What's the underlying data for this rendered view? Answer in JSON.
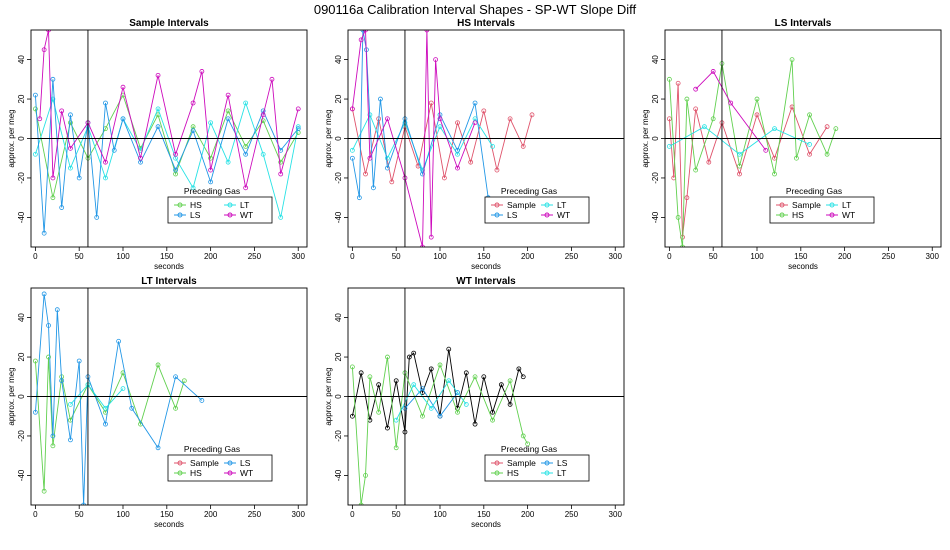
{
  "figure": {
    "title": "090116a   Calibration Interval Shapes - SP-WT Slope Diff"
  },
  "colors": {
    "Sample": "#df536b",
    "HS": "#61d04f",
    "LS": "#2297e6",
    "LT": "#28e2e5",
    "WT": "#cd0bbc",
    "black": "#000000"
  },
  "chart_data": [
    {
      "type": "line",
      "title": "Sample Intervals",
      "xlabel": "seconds",
      "ylabel": "approx. per meg",
      "xlim": [
        -5,
        310
      ],
      "ylim": [
        -55,
        55
      ],
      "xticks": [
        0,
        50,
        100,
        150,
        200,
        250,
        300
      ],
      "yticks": [
        -40,
        -20,
        0,
        20,
        40
      ],
      "vline": 60,
      "hline": 0,
      "legend": {
        "title": "Preceding Gas",
        "position": "bottom-center",
        "columns": 2,
        "entries": [
          "HS",
          "LT",
          "LS",
          "WT"
        ]
      },
      "series": [
        {
          "name": "HS",
          "color": "HS",
          "x": [
            0,
            20,
            40,
            60,
            80,
            100,
            120,
            140,
            160,
            180,
            200,
            220,
            240,
            260,
            280,
            300
          ],
          "y": [
            15,
            -30,
            8,
            -10,
            5,
            22,
            -5,
            12,
            -18,
            6,
            -10,
            14,
            -4,
            9,
            -12,
            3
          ]
        },
        {
          "name": "LT",
          "color": "LT",
          "x": [
            0,
            20,
            40,
            60,
            80,
            100,
            120,
            140,
            160,
            180,
            200,
            220,
            240,
            260,
            280,
            300
          ],
          "y": [
            -8,
            20,
            -15,
            6,
            -20,
            10,
            -6,
            15,
            -10,
            -25,
            8,
            -12,
            18,
            -8,
            -40,
            6
          ]
        },
        {
          "name": "LS",
          "color": "LS",
          "x": [
            0,
            10,
            20,
            30,
            40,
            50,
            60,
            70,
            80,
            90,
            100,
            120,
            140,
            160,
            180,
            200,
            220,
            240,
            260,
            280,
            300
          ],
          "y": [
            22,
            -48,
            30,
            -35,
            12,
            -20,
            8,
            -40,
            18,
            -6,
            10,
            -12,
            6,
            -16,
            4,
            -22,
            10,
            -8,
            14,
            -6,
            5
          ]
        },
        {
          "name": "WT",
          "color": "WT",
          "x": [
            5,
            10,
            15,
            20,
            30,
            40,
            60,
            80,
            100,
            120,
            140,
            160,
            180,
            190,
            200,
            220,
            240,
            260,
            270,
            280,
            300
          ],
          "y": [
            10,
            45,
            55,
            -20,
            14,
            -5,
            8,
            -12,
            26,
            -10,
            32,
            -8,
            18,
            34,
            -16,
            22,
            -25,
            12,
            30,
            -18,
            15
          ]
        }
      ]
    },
    {
      "type": "line",
      "title": "HS Intervals",
      "xlabel": "seconds",
      "ylabel": "approx. per meg",
      "xlim": [
        -5,
        310
      ],
      "ylim": [
        -55,
        55
      ],
      "xticks": [
        0,
        50,
        100,
        150,
        200,
        250,
        300
      ],
      "yticks": [
        -40,
        -20,
        0,
        20,
        40
      ],
      "vline": 60,
      "hline": 0,
      "legend": {
        "title": "Preceding Gas",
        "position": "bottom-center",
        "columns": 2,
        "entries": [
          "Sample",
          "LT",
          "LS",
          "WT"
        ]
      },
      "series": [
        {
          "name": "Sample",
          "color": "Sample",
          "x": [
            0,
            15,
            30,
            45,
            60,
            75,
            90,
            105,
            120,
            135,
            150,
            165,
            180,
            195,
            205
          ],
          "y": [
            15,
            -18,
            10,
            -22,
            6,
            -14,
            18,
            -20,
            8,
            -12,
            14,
            -16,
            10,
            -4,
            12
          ]
        },
        {
          "name": "LT",
          "color": "LT",
          "x": [
            0,
            20,
            40,
            60,
            80,
            100,
            120,
            140,
            160
          ],
          "y": [
            -6,
            12,
            -10,
            8,
            -16,
            6,
            -8,
            10,
            -4
          ]
        },
        {
          "name": "LS",
          "color": "LS",
          "x": [
            0,
            8,
            12,
            16,
            24,
            32,
            40,
            60,
            80,
            100,
            120,
            140,
            155
          ],
          "y": [
            -10,
            -30,
            55,
            45,
            -25,
            20,
            -15,
            10,
            -18,
            12,
            -6,
            18,
            -30
          ]
        },
        {
          "name": "WT",
          "color": "WT",
          "x": [
            0,
            10,
            15,
            20,
            40,
            60,
            80,
            85,
            90,
            95,
            100,
            120,
            140
          ],
          "y": [
            15,
            50,
            55,
            -10,
            10,
            -20,
            -55,
            55,
            -50,
            40,
            10,
            -15,
            8
          ]
        }
      ]
    },
    {
      "type": "line",
      "title": "LS Intervals",
      "xlabel": "seconds",
      "ylabel": "approx. per meg",
      "xlim": [
        -5,
        310
      ],
      "ylim": [
        -55,
        55
      ],
      "xticks": [
        0,
        50,
        100,
        150,
        200,
        250,
        300
      ],
      "yticks": [
        -40,
        -20,
        0,
        20,
        40
      ],
      "vline": 60,
      "hline": 0,
      "legend": {
        "title": "Preceding Gas",
        "position": "bottom-center",
        "columns": 2,
        "entries": [
          "Sample",
          "LT",
          "HS",
          "WT"
        ]
      },
      "series": [
        {
          "name": "Sample",
          "color": "Sample",
          "x": [
            0,
            5,
            10,
            15,
            20,
            30,
            45,
            60,
            80,
            100,
            120,
            140,
            160,
            180
          ],
          "y": [
            10,
            -20,
            28,
            -50,
            -30,
            15,
            -12,
            8,
            -18,
            12,
            -10,
            16,
            -8,
            6
          ]
        },
        {
          "name": "HS",
          "color": "HS",
          "x": [
            0,
            10,
            15,
            20,
            30,
            50,
            60,
            80,
            100,
            120,
            140,
            145,
            160,
            180,
            190
          ],
          "y": [
            30,
            -40,
            -55,
            20,
            -16,
            10,
            38,
            -14,
            20,
            -18,
            40,
            -10,
            12,
            -8,
            5
          ]
        },
        {
          "name": "LT",
          "color": "LT",
          "x": [
            0,
            40,
            80,
            120,
            160
          ],
          "y": [
            -4,
            6,
            -8,
            5,
            -3
          ]
        },
        {
          "name": "WT",
          "color": "WT",
          "x": [
            30,
            50,
            70,
            110
          ],
          "y": [
            25,
            34,
            18,
            -6
          ]
        }
      ]
    },
    {
      "type": "line",
      "title": "LT Intervals",
      "xlabel": "seconds",
      "ylabel": "approx. per meg",
      "xlim": [
        -5,
        310
      ],
      "ylim": [
        -55,
        55
      ],
      "xticks": [
        0,
        50,
        100,
        150,
        200,
        250,
        300
      ],
      "yticks": [
        -40,
        -20,
        0,
        20,
        40
      ],
      "vline": 60,
      "hline": 0,
      "legend": {
        "title": "Preceding Gas",
        "position": "bottom-center",
        "columns": 2,
        "entries": [
          "Sample",
          "LS",
          "HS",
          "WT"
        ]
      },
      "series": [
        {
          "name": "HS",
          "color": "HS",
          "x": [
            0,
            10,
            15,
            20,
            30,
            40,
            60,
            80,
            100,
            120,
            140,
            160,
            170
          ],
          "y": [
            18,
            -48,
            20,
            -25,
            10,
            -12,
            6,
            -8,
            12,
            -14,
            16,
            -6,
            8
          ]
        },
        {
          "name": "LS",
          "color": "LS",
          "x": [
            0,
            10,
            15,
            20,
            25,
            30,
            40,
            50,
            55,
            60,
            80,
            95,
            110,
            140,
            160,
            190
          ],
          "y": [
            -8,
            52,
            36,
            -20,
            44,
            8,
            -22,
            18,
            -55,
            10,
            -14,
            28,
            -6,
            -26,
            10,
            -2
          ]
        },
        {
          "name": "LT",
          "color": "LT",
          "x": [
            40,
            60,
            80,
            100
          ],
          "y": [
            -4,
            6,
            -6,
            4
          ]
        }
      ]
    },
    {
      "type": "line",
      "title": "WT Intervals",
      "xlabel": "seconds",
      "ylabel": "approx. per meg",
      "xlim": [
        -5,
        310
      ],
      "ylim": [
        -55,
        55
      ],
      "xticks": [
        0,
        50,
        100,
        150,
        200,
        250,
        300
      ],
      "yticks": [
        -40,
        -20,
        0,
        20,
        40
      ],
      "vline": 60,
      "hline": 0,
      "legend": {
        "title": "Preceding Gas",
        "position": "bottom-center",
        "columns": 2,
        "entries": [
          "Sample",
          "LS",
          "HS",
          "LT"
        ]
      },
      "series": [
        {
          "name": "Sample",
          "color": "black",
          "x": [
            0,
            10,
            20,
            30,
            40,
            50,
            60,
            65,
            70,
            80,
            90,
            100,
            110,
            120,
            130,
            140,
            150,
            160,
            170,
            180,
            190,
            195
          ],
          "y": [
            -10,
            12,
            -12,
            6,
            -16,
            8,
            -18,
            20,
            22,
            2,
            14,
            -10,
            24,
            -6,
            12,
            -14,
            10,
            -8,
            6,
            -4,
            14,
            10
          ]
        },
        {
          "name": "HS",
          "color": "HS",
          "x": [
            0,
            10,
            15,
            20,
            30,
            40,
            50,
            60,
            80,
            100,
            120,
            140,
            160,
            180,
            195,
            200
          ],
          "y": [
            15,
            -55,
            -40,
            10,
            -8,
            20,
            -26,
            12,
            -10,
            16,
            -8,
            10,
            -12,
            8,
            -20,
            -24
          ]
        },
        {
          "name": "LS",
          "color": "LS",
          "x": [
            60,
            80,
            100,
            120
          ],
          "y": [
            -6,
            4,
            -10,
            2
          ]
        },
        {
          "name": "LT",
          "color": "LT",
          "x": [
            50,
            70,
            90,
            110,
            130
          ],
          "y": [
            -12,
            6,
            -6,
            8,
            -4
          ]
        }
      ]
    }
  ]
}
